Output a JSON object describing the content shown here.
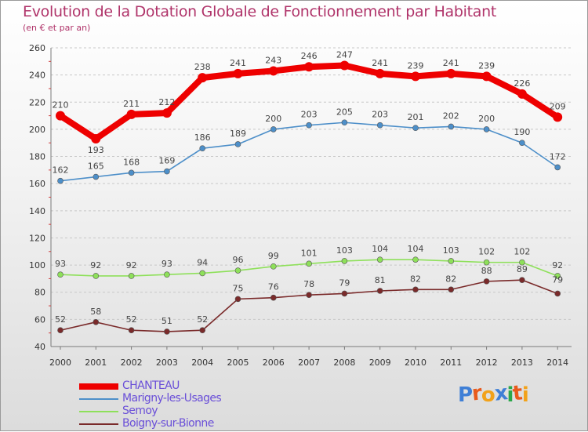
{
  "header": {
    "title": "Evolution de la Dotation Globale de Fonctionnement par Habitant",
    "subtitle": "(en € et par an)"
  },
  "brand": {
    "letters": [
      "P",
      "r",
      "o",
      "x",
      "i",
      "t",
      "i"
    ]
  },
  "colors": {
    "title": "#b0346a",
    "legend_text": "#6a4fd8",
    "brand": [
      "#3f7fd6",
      "#e85a1c",
      "#f2a21a",
      "#3f7fd6",
      "#2aa84a",
      "#e85a1c",
      "#f2a21a"
    ]
  },
  "chart_data": {
    "type": "line",
    "title": "Evolution de la Dotation Globale de Fonctionnement par Habitant",
    "subtitle": "(en € et par an)",
    "xlabel": "",
    "ylabel": "",
    "ylim": [
      40,
      260
    ],
    "yticks": [
      40,
      60,
      80,
      100,
      120,
      140,
      160,
      180,
      200,
      220,
      240,
      260
    ],
    "grid": "dashed-horizontal",
    "categories": [
      "2000",
      "2001",
      "2002",
      "2003",
      "2004",
      "2005",
      "2006",
      "2007",
      "2008",
      "2009",
      "2010",
      "2011",
      "2012",
      "2013",
      "2014"
    ],
    "series": [
      {
        "name": "CHANTEAU",
        "color": "#ee0000",
        "weight": "thick",
        "values": [
          210,
          193,
          211,
          212,
          238,
          241,
          243,
          246,
          247,
          241,
          239,
          241,
          239,
          226,
          209
        ]
      },
      {
        "name": "Marigny-les-Usages",
        "color": "#4d8fc9",
        "weight": "thin",
        "values": [
          162,
          165,
          168,
          169,
          186,
          189,
          200,
          203,
          205,
          203,
          201,
          202,
          200,
          190,
          172
        ]
      },
      {
        "name": "Semoy",
        "color": "#8ee05a",
        "weight": "thin",
        "values": [
          93,
          92,
          92,
          93,
          94,
          96,
          99,
          101,
          103,
          104,
          104,
          103,
          102,
          102,
          92
        ]
      },
      {
        "name": "Boigny-sur-Bionne",
        "color": "#7a2a2a",
        "weight": "thin",
        "values": [
          52,
          58,
          52,
          51,
          52,
          75,
          76,
          78,
          79,
          81,
          82,
          82,
          88,
          89,
          79
        ]
      }
    ]
  }
}
